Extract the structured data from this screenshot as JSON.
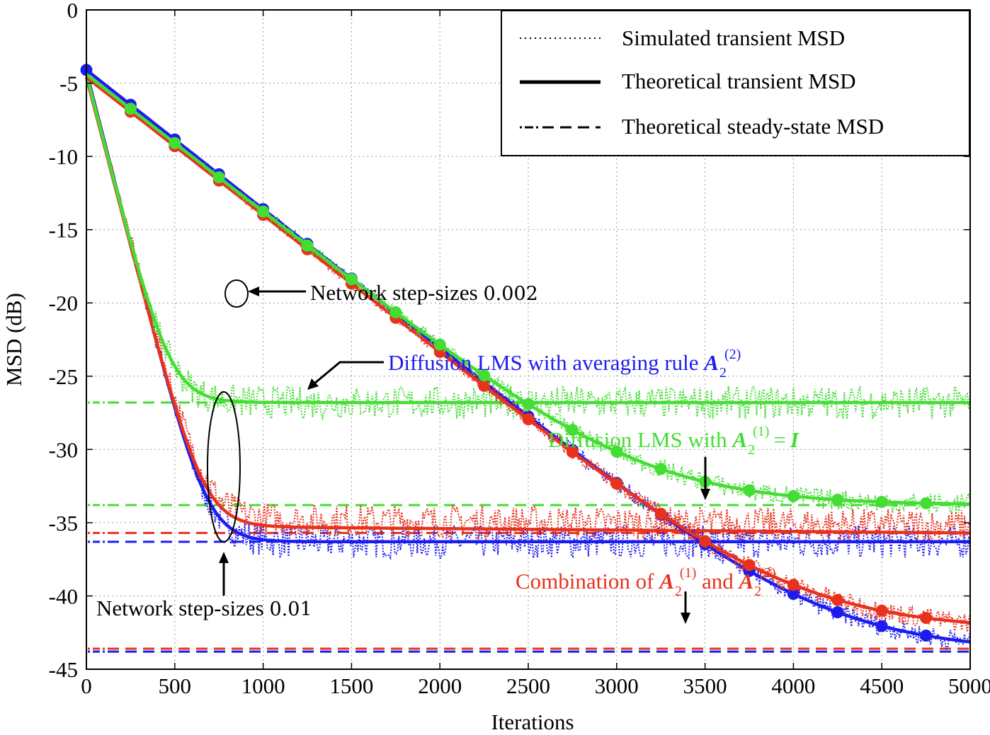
{
  "chart_data": {
    "type": "line",
    "title": "",
    "xlabel": "Iterations",
    "ylabel": "MSD (dB)",
    "xlim": [
      0,
      5000
    ],
    "ylim": [
      -45,
      0
    ],
    "grid": true,
    "xticks": [
      0,
      500,
      1000,
      1500,
      2000,
      2500,
      3000,
      3500,
      4000,
      4500,
      5000
    ],
    "yticks": [
      0,
      -5,
      -10,
      -15,
      -20,
      -25,
      -30,
      -35,
      -40,
      -45
    ],
    "xtick_labels": [
      "0",
      "500",
      "1000",
      "1500",
      "2000",
      "2500",
      "3000",
      "3500",
      "4000",
      "4500",
      "5000"
    ],
    "ytick_labels": [
      "0",
      "-5",
      "-10",
      "-15",
      "-20",
      "-25",
      "-30",
      "-35",
      "-40",
      "-45"
    ],
    "colors": {
      "blue": "#1c1cf0",
      "red": "#e8321e",
      "green": "#44dd33"
    },
    "legend": {
      "location": "top-right",
      "entries": [
        {
          "label": "Simulated transient MSD",
          "style": "dotted"
        },
        {
          "label": "Theoretical transient MSD",
          "style": "solid"
        },
        {
          "label": "Theoretical steady-state MSD",
          "style": "dashed"
        }
      ]
    },
    "series": [
      {
        "name": "Diffusion LMS with averaging rule A2(2), step 0.002",
        "color": "blue",
        "step_size": 0.002,
        "start": -4.1,
        "rate": 0.0095,
        "steady": -43.8,
        "marker_start": 0
      },
      {
        "name": "Combination of A2(1) and A2(2), step 0.002",
        "color": "red",
        "step_size": 0.002,
        "start": -4.6,
        "rate": 0.0094,
        "steady": -42.3,
        "marker_start": 250
      },
      {
        "name": "Diffusion LMS with A2(1) = I, step 0.002",
        "color": "green",
        "step_size": 0.002,
        "start": -4.4,
        "rate": 0.0094,
        "steady": -33.8,
        "marker_start": 250
      },
      {
        "name": "Diffusion LMS with averaging rule A2(2), step 0.01",
        "color": "blue",
        "step_size": 0.01,
        "start": -4.2,
        "rate": 0.047,
        "steady": -36.3
      },
      {
        "name": "Combination of A2(1) and A2(2), step 0.01",
        "color": "red",
        "step_size": 0.01,
        "start": -4.6,
        "rate": 0.046,
        "steady": -35.2,
        "drift_end": -35.7
      },
      {
        "name": "Diffusion LMS with A2(1) = I, step 0.01",
        "color": "green",
        "step_size": 0.01,
        "start": -4.4,
        "rate": 0.047,
        "steady": -26.8
      }
    ],
    "steady_state": [
      {
        "color": "green",
        "value": -26.8
      },
      {
        "color": "green",
        "value": -33.8
      },
      {
        "color": "red",
        "value": -35.7
      },
      {
        "color": "blue",
        "value": -36.3
      },
      {
        "color": "red",
        "value": -43.6
      },
      {
        "color": "blue",
        "value": -43.8
      }
    ],
    "annotations": {
      "step_002": {
        "text": "Network step-sizes ",
        "number": "0.002"
      },
      "step_001": {
        "text": "Network step-sizes ",
        "number": "0.01"
      },
      "blue": {
        "text": "Diffusion LMS with averaging rule ",
        "sup": "(2)",
        "sub": "2"
      },
      "green": {
        "text": "Diffusion LMS with ",
        "sup": "(1)",
        "sub": "2",
        "rhs": "I"
      },
      "red": {
        "text": "Combination of ",
        "sup1": "(1)",
        "sup2": "(2)",
        "sub": "2",
        "mid": " and "
      }
    },
    "matrix_symbol": "A"
  }
}
